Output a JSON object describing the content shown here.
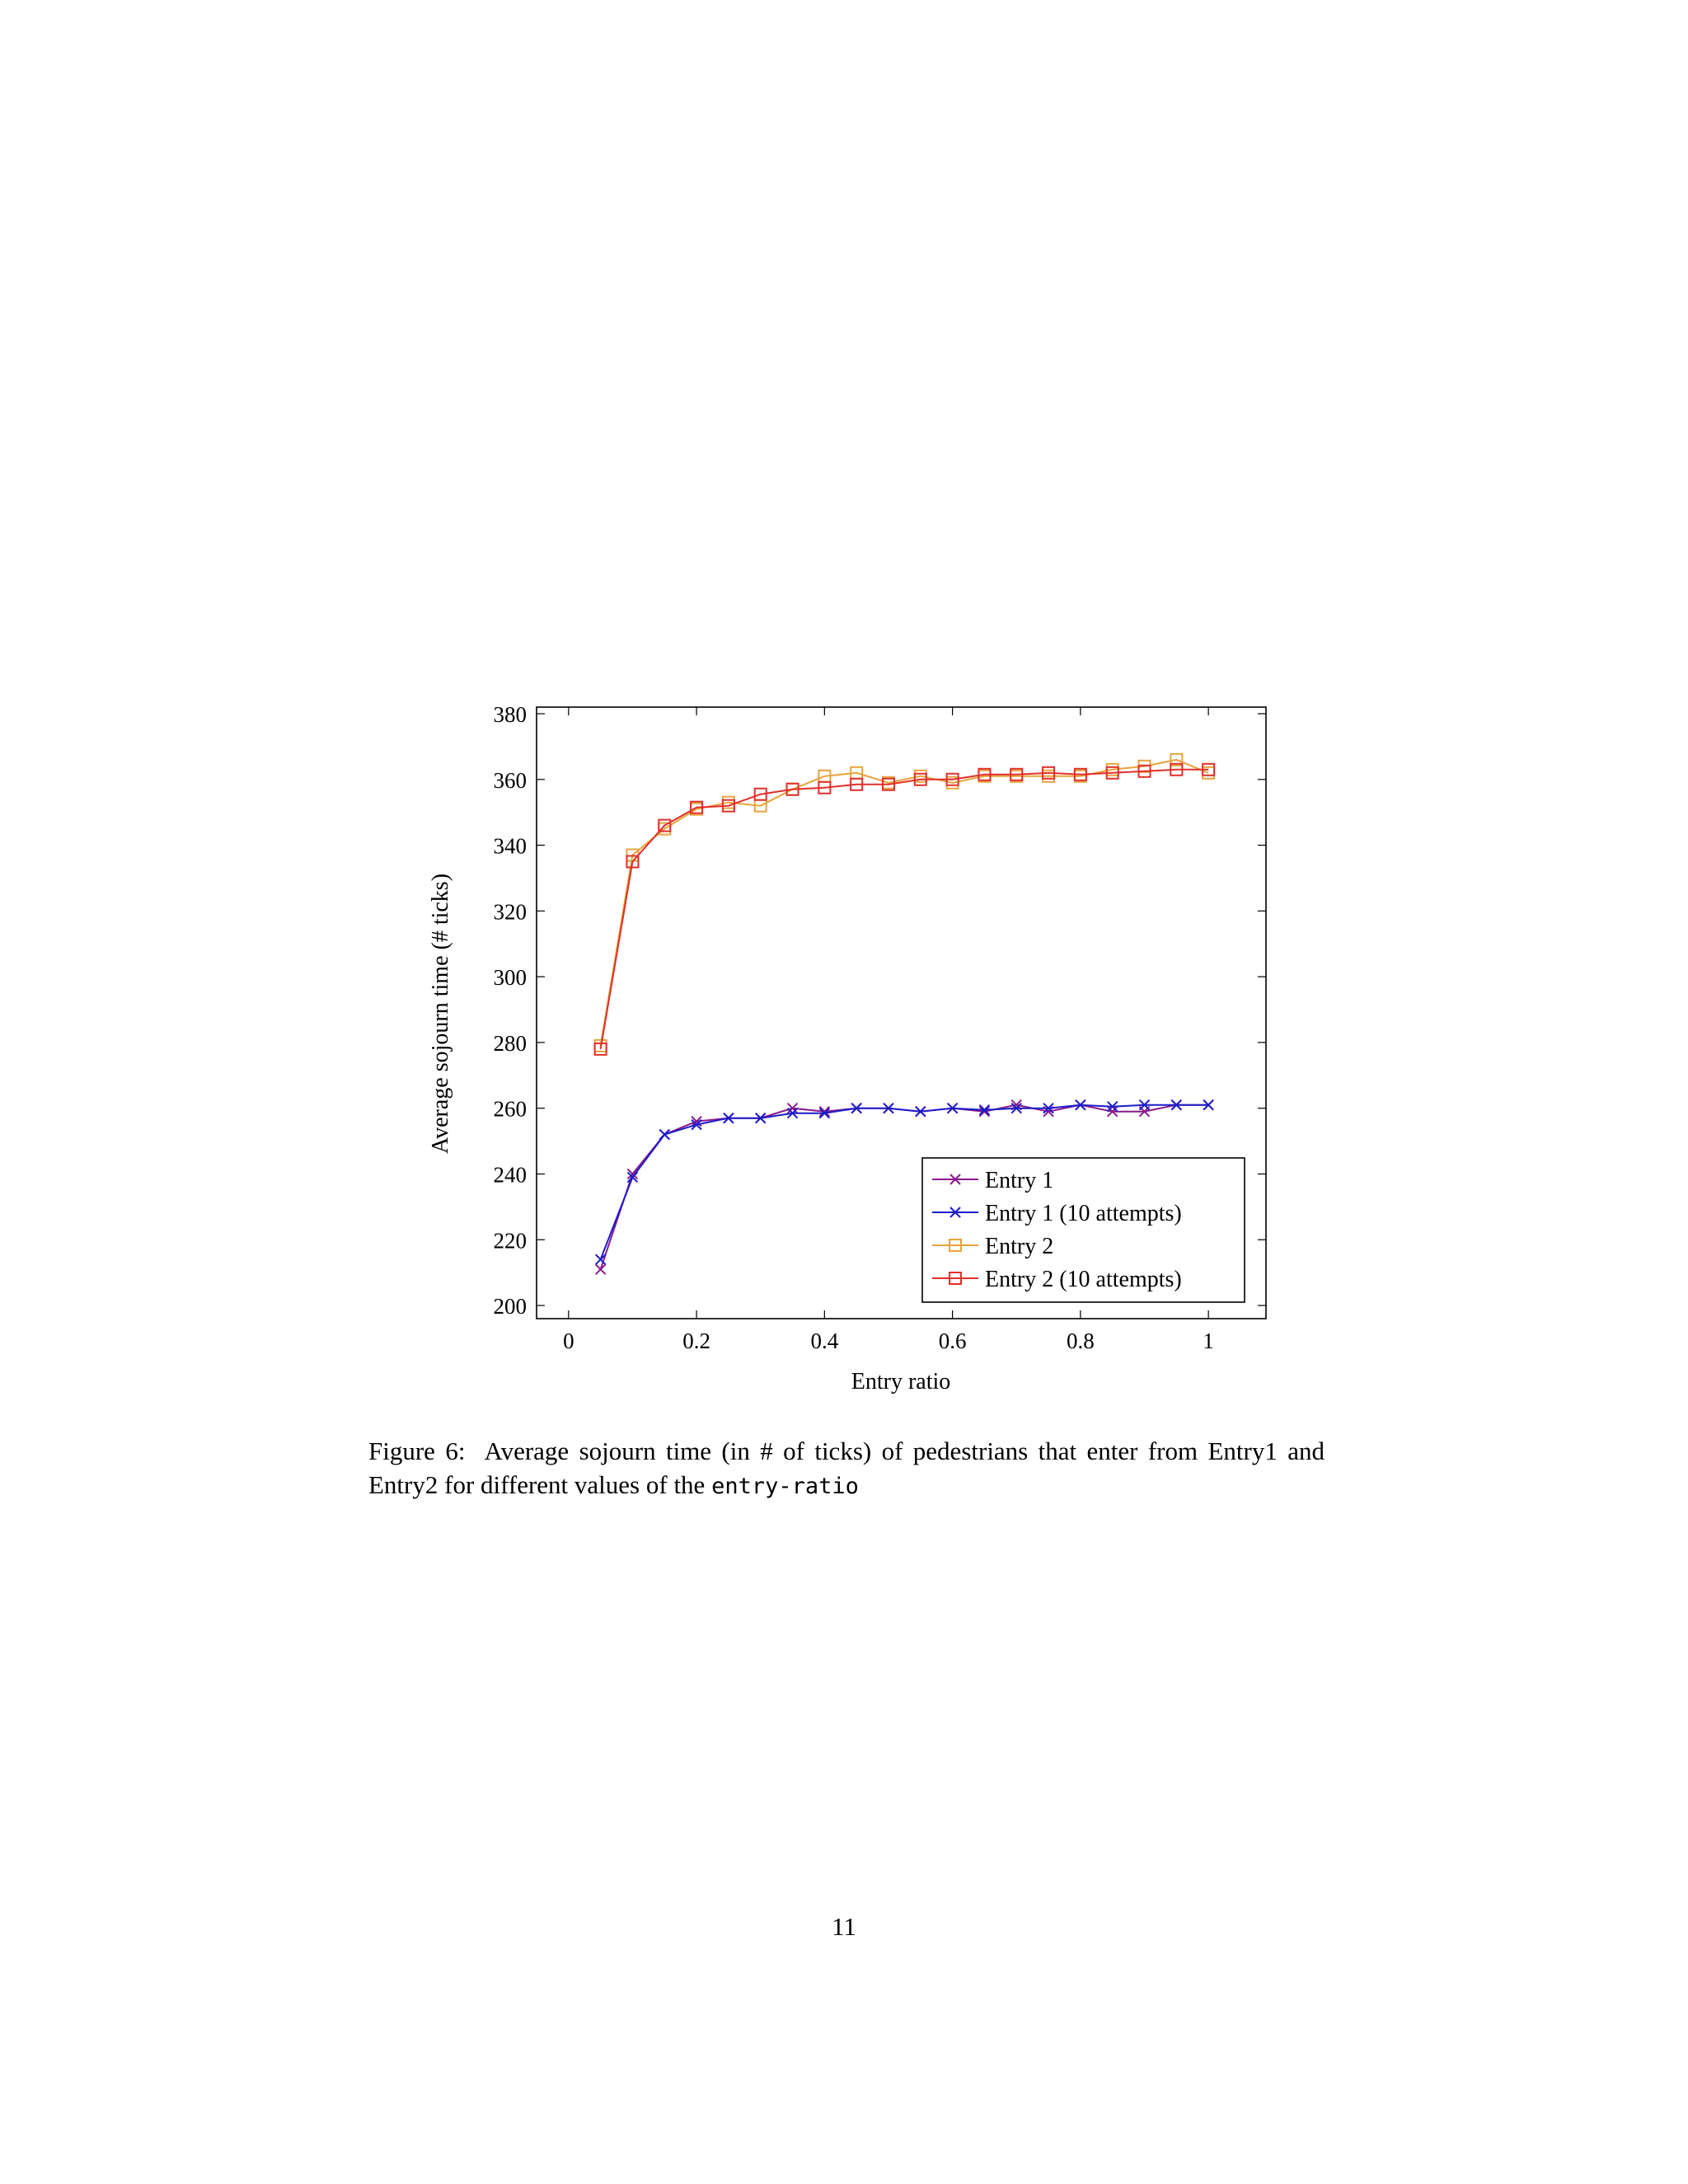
{
  "chart_data": {
    "type": "line",
    "title": "",
    "xlabel": "Entry ratio",
    "ylabel": "Average sojourn time (# ticks)",
    "xlim": [
      -0.05,
      1.09
    ],
    "ylim": [
      196,
      382
    ],
    "xticks": [
      0,
      0.2,
      0.4,
      0.6,
      0.8,
      1
    ],
    "xtick_labels": [
      "0",
      "0.2",
      "0.4",
      "0.6",
      "0.8",
      "1"
    ],
    "yticks": [
      200,
      220,
      240,
      260,
      280,
      300,
      320,
      340,
      360,
      380
    ],
    "ytick_labels": [
      "200",
      "220",
      "240",
      "260",
      "280",
      "300",
      "320",
      "340",
      "360",
      "380"
    ],
    "grid": false,
    "legend_position": "bottom-right",
    "x": [
      0.05,
      0.1,
      0.15,
      0.2,
      0.25,
      0.3,
      0.35,
      0.4,
      0.45,
      0.5,
      0.55,
      0.6,
      0.65,
      0.7,
      0.75,
      0.8,
      0.85,
      0.9,
      0.95,
      1.0
    ],
    "series": [
      {
        "name": "Entry 1",
        "color": "#8b1a8b",
        "marker": "x",
        "values": [
          211,
          240,
          252,
          256,
          257,
          257,
          260,
          259,
          260,
          260,
          259,
          260,
          259,
          261,
          259,
          261,
          259,
          259,
          261,
          261
        ]
      },
      {
        "name": "Entry 1 (10 attempts)",
        "color": "#1c1ccc",
        "marker": "x",
        "values": [
          214,
          239,
          252,
          255,
          257,
          257,
          258.5,
          258.5,
          260,
          260,
          259,
          260,
          259.5,
          260,
          260,
          261,
          260.5,
          261,
          261,
          261
        ]
      },
      {
        "name": "Entry 2",
        "color": "#e8a33c",
        "marker": "square",
        "values": [
          279,
          337,
          345,
          351,
          353,
          352,
          357,
          361,
          362,
          359,
          361,
          359,
          361,
          361,
          361,
          361,
          363,
          364,
          366,
          362
        ]
      },
      {
        "name": "Entry 2 (10 attempts)",
        "color": "#e0302a",
        "marker": "square",
        "values": [
          278,
          335,
          346,
          351.5,
          352,
          355.5,
          357,
          357.5,
          358.5,
          358.5,
          360,
          360,
          361.5,
          361.5,
          362,
          361.5,
          362,
          362.5,
          363,
          363
        ]
      }
    ]
  },
  "caption": {
    "label": "Figure 6:",
    "text": "Average sojourn time (in # of ticks) of pedestrians that enter from Entry1 and Entry2 for different values of the",
    "code": "entry-ratio"
  },
  "page_number": "11"
}
